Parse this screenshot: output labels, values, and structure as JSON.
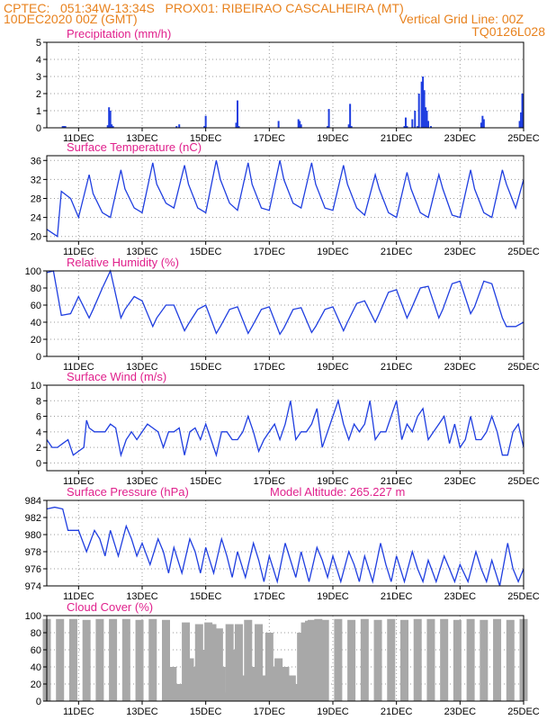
{
  "header": {
    "line1": "CPTEC:   051:34W-13:34S   PROX01: RIBEIRAO CASCALHEIRA (MT)",
    "line2_left": "10DEC2020 00Z (GMT)",
    "line2_right": "Vertical Grid Line: 00Z",
    "line3_right": "TQ0126L028"
  },
  "colors": {
    "header": "#e8821e",
    "title": "#e0208c",
    "series": "#1f3ee0",
    "cloud": "#a8a8a8",
    "grid": "#9a9a9a"
  },
  "x_axis": {
    "xlim": [
      0,
      360
    ],
    "tick_hours": [
      24,
      72,
      120,
      168,
      216,
      264,
      312,
      360
    ],
    "tick_labels": [
      "11DEC",
      "13DEC",
      "15DEC",
      "17DEC",
      "19DEC",
      "21DEC",
      "23DEC",
      "25DEC"
    ]
  },
  "chart_data": [
    {
      "type": "bar",
      "title": "Precipitation (mm/h)",
      "ylim": [
        0,
        5
      ],
      "yticks": [
        0,
        1,
        2,
        3,
        4,
        5
      ],
      "grid": true,
      "x_hours": [
        12,
        13,
        14,
        46,
        47,
        48,
        49,
        50,
        98,
        100,
        119,
        120,
        143,
        144,
        145,
        175,
        190,
        191,
        192,
        212,
        213,
        228,
        229,
        230,
        270,
        271,
        272,
        276,
        278,
        280,
        281,
        283,
        284,
        285,
        286,
        287,
        288,
        290,
        328,
        329,
        330,
        357,
        358,
        359
      ],
      "values": [
        0.1,
        0.1,
        0.1,
        0.15,
        1.2,
        1.0,
        0.2,
        0.1,
        0.1,
        0.2,
        0.1,
        0.7,
        0.3,
        1.6,
        0.1,
        0.4,
        0.5,
        0.4,
        0.2,
        0.1,
        1.1,
        0.2,
        1.4,
        0.1,
        0.1,
        0.6,
        0.1,
        0.5,
        1.0,
        0.1,
        2.0,
        2.7,
        3.0,
        2.2,
        1.2,
        1.0,
        0.4,
        0.1,
        0.3,
        0.7,
        0.5,
        0.4,
        0.9,
        2.0
      ]
    },
    {
      "type": "line",
      "title": "Surface Temperature (nC)",
      "ylim": [
        19,
        37
      ],
      "yticks": [
        20,
        24,
        28,
        32,
        36
      ],
      "grid": true,
      "x_hours": [
        0,
        8,
        11,
        18,
        24,
        32,
        35,
        42,
        48,
        56,
        59,
        66,
        72,
        80,
        83,
        90,
        96,
        104,
        107,
        114,
        120,
        128,
        131,
        138,
        144,
        152,
        155,
        162,
        168,
        176,
        179,
        186,
        192,
        200,
        203,
        210,
        216,
        224,
        227,
        234,
        240,
        248,
        251,
        258,
        264,
        272,
        275,
        282,
        288,
        296,
        299,
        306,
        312,
        320,
        323,
        330,
        336,
        344,
        347,
        354,
        360
      ],
      "values": [
        21.5,
        20,
        29.5,
        28,
        24,
        33,
        29,
        25,
        24,
        34,
        30,
        26,
        25,
        35.5,
        31,
        27,
        26,
        35,
        31,
        26,
        25,
        36,
        32,
        27,
        25.5,
        35.5,
        31,
        26,
        25.5,
        36,
        32,
        27,
        26,
        35.5,
        31,
        26,
        25.5,
        35,
        31,
        26,
        24.5,
        33,
        30,
        25,
        24,
        33.5,
        30,
        25,
        24,
        33,
        30,
        24.5,
        24,
        34,
        30,
        25,
        24,
        34,
        31,
        26,
        32
      ]
    },
    {
      "type": "line",
      "title": "Relative Humidity (%)",
      "ylim": [
        0,
        100
      ],
      "yticks": [
        0,
        20,
        40,
        60,
        80,
        100
      ],
      "grid": true,
      "x_hours": [
        0,
        5,
        11,
        18,
        24,
        32,
        35,
        42,
        48,
        56,
        59,
        66,
        72,
        80,
        83,
        90,
        96,
        104,
        107,
        114,
        120,
        128,
        131,
        138,
        144,
        152,
        155,
        162,
        168,
        176,
        179,
        186,
        192,
        200,
        203,
        210,
        216,
        224,
        227,
        234,
        240,
        248,
        251,
        258,
        264,
        272,
        275,
        282,
        288,
        296,
        299,
        306,
        312,
        320,
        323,
        330,
        336,
        344,
        347,
        354,
        360
      ],
      "values": [
        98,
        100,
        48,
        50,
        70,
        45,
        55,
        80,
        100,
        45,
        55,
        70,
        65,
        35,
        45,
        60,
        60,
        30,
        38,
        55,
        60,
        27,
        35,
        55,
        58,
        27,
        35,
        55,
        58,
        26,
        33,
        55,
        57,
        28,
        35,
        55,
        58,
        30,
        40,
        62,
        65,
        40,
        50,
        75,
        78,
        45,
        55,
        80,
        82,
        45,
        55,
        85,
        88,
        50,
        58,
        88,
        85,
        45,
        35,
        35,
        40
      ]
    },
    {
      "type": "line",
      "title": "Surface Wind (m/s)",
      "ylim": [
        -1,
        10
      ],
      "yticks": [
        0,
        2,
        4,
        6,
        8,
        10
      ],
      "grid": true,
      "x_hours": [
        0,
        4,
        8,
        12,
        16,
        20,
        24,
        28,
        30,
        32,
        36,
        40,
        44,
        48,
        52,
        56,
        60,
        64,
        68,
        72,
        76,
        80,
        84,
        88,
        92,
        96,
        100,
        104,
        108,
        112,
        116,
        120,
        124,
        128,
        132,
        136,
        140,
        144,
        148,
        152,
        156,
        160,
        164,
        168,
        172,
        176,
        180,
        184,
        188,
        192,
        196,
        200,
        204,
        208,
        212,
        216,
        220,
        224,
        228,
        232,
        236,
        240,
        244,
        248,
        252,
        256,
        260,
        264,
        268,
        272,
        276,
        280,
        284,
        288,
        292,
        296,
        300,
        304,
        308,
        312,
        316,
        320,
        324,
        328,
        332,
        336,
        340,
        344,
        348,
        352,
        356,
        360
      ],
      "values": [
        3,
        2,
        2,
        2.5,
        3,
        1,
        1.5,
        2,
        5.5,
        4.5,
        4,
        4,
        4,
        5,
        4.5,
        1,
        3,
        4,
        3,
        4,
        5,
        4.5,
        4,
        2,
        4,
        4,
        4.5,
        1,
        4,
        4.5,
        3,
        5,
        3,
        1,
        4,
        4,
        3,
        3,
        4,
        6,
        4,
        1.5,
        3,
        4,
        5,
        3,
        5,
        8,
        3,
        4,
        4,
        5,
        7,
        2,
        4,
        6,
        8,
        5,
        3,
        5,
        4,
        5,
        8,
        3,
        4,
        4,
        6,
        8,
        3,
        5,
        4,
        6,
        7,
        3,
        4,
        5,
        6,
        2.5,
        5,
        2,
        3,
        6,
        3,
        3,
        4,
        6,
        4,
        1,
        1,
        4,
        5,
        2
      ]
    },
    {
      "type": "line",
      "title": "Surface Pressure (hPa)",
      "annotation": "Model Altitude: 265.227 m",
      "ylim": [
        974,
        984
      ],
      "yticks": [
        974,
        976,
        978,
        980,
        982,
        984
      ],
      "grid": true,
      "x_hours": [
        0,
        6,
        12,
        16,
        20,
        24,
        30,
        36,
        40,
        44,
        48,
        54,
        60,
        64,
        68,
        72,
        78,
        84,
        88,
        92,
        96,
        102,
        108,
        112,
        116,
        120,
        126,
        132,
        136,
        140,
        144,
        150,
        156,
        160,
        164,
        168,
        174,
        180,
        184,
        188,
        192,
        198,
        204,
        208,
        212,
        216,
        222,
        228,
        232,
        236,
        240,
        246,
        252,
        256,
        260,
        264,
        270,
        276,
        280,
        284,
        288,
        294,
        300,
        304,
        308,
        312,
        318,
        324,
        328,
        332,
        336,
        342,
        348,
        352,
        356,
        360
      ],
      "values": [
        983,
        983.2,
        983,
        980.5,
        980.5,
        980.5,
        978,
        980.5,
        979.5,
        977.5,
        980.5,
        977.5,
        981,
        979.5,
        977.5,
        979,
        976.5,
        979.5,
        978,
        975.5,
        978.5,
        975.5,
        979.5,
        978,
        975.5,
        978.5,
        975.5,
        979.5,
        977.5,
        975,
        978,
        975,
        979,
        977,
        974.5,
        977.5,
        974.5,
        979,
        977,
        975,
        978,
        974.5,
        978.5,
        977,
        975,
        977.5,
        974.5,
        978,
        976.5,
        974.5,
        977.5,
        974.5,
        979,
        976.5,
        974.5,
        977.5,
        974.5,
        978,
        976,
        974.5,
        977,
        974.5,
        977.5,
        976,
        974.5,
        976.5,
        974.5,
        978,
        976,
        974.5,
        977,
        974,
        979,
        976,
        974.5,
        976
      ]
    },
    {
      "type": "bar",
      "title": "Cloud Cover (%)",
      "ylim": [
        0,
        100
      ],
      "yticks": [
        0,
        20,
        40,
        60,
        80,
        100
      ],
      "grid": true,
      "x_hours": [
        0,
        10,
        20,
        30,
        40,
        50,
        60,
        70,
        80,
        90,
        95,
        100,
        105,
        108,
        110,
        112,
        115,
        118,
        120,
        122,
        125,
        128,
        130,
        132,
        135,
        138,
        140,
        142,
        145,
        148,
        150,
        152,
        155,
        158,
        160,
        162,
        165,
        168,
        170,
        172,
        175,
        178,
        180,
        182,
        185,
        188,
        190,
        192,
        195,
        198,
        200,
        205,
        210,
        220,
        230,
        240,
        250,
        260,
        270,
        280,
        290,
        300,
        310,
        320,
        330,
        340,
        350,
        360
      ],
      "values": [
        96,
        96,
        96,
        95,
        96,
        96,
        96,
        95,
        96,
        95,
        40,
        20,
        92,
        50,
        20,
        40,
        90,
        30,
        60,
        92,
        90,
        20,
        85,
        40,
        10,
        90,
        60,
        20,
        90,
        30,
        20,
        95,
        40,
        20,
        90,
        30,
        15,
        80,
        40,
        25,
        50,
        20,
        40,
        15,
        30,
        10,
        20,
        80,
        92,
        94,
        95,
        96,
        95,
        96,
        95,
        96,
        95,
        96,
        95,
        96,
        96,
        96,
        95,
        96,
        95,
        96,
        95,
        96
      ]
    }
  ],
  "panels": [
    {
      "title": "Precipitation (mm/h)",
      "annotation": ""
    },
    {
      "title": "Surface Temperature (nC)",
      "annotation": ""
    },
    {
      "title": "Relative Humidity (%)",
      "annotation": ""
    },
    {
      "title": "Surface Wind (m/s)",
      "annotation": ""
    },
    {
      "title": "Surface Pressure (hPa)",
      "annotation": "Model Altitude: 265.227 m"
    },
    {
      "title": "Cloud Cover (%)",
      "annotation": ""
    }
  ]
}
